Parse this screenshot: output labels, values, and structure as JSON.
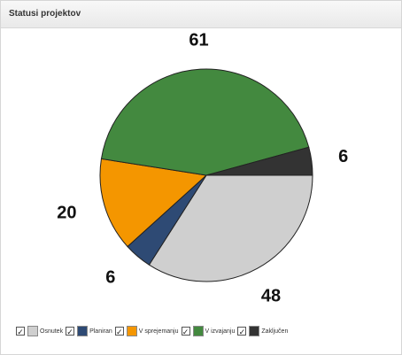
{
  "panel": {
    "title": "Statusi projektov"
  },
  "chart_data": {
    "type": "pie",
    "title": "",
    "slices": [
      {
        "label": "Osnutek",
        "value": 48,
        "color": "#cfcfcf"
      },
      {
        "label": "Planiran",
        "value": 6,
        "color": "#2e4a74"
      },
      {
        "label": "V sprejemanju",
        "value": 20,
        "color": "#f49600"
      },
      {
        "label": "V izvajanju",
        "value": 61,
        "color": "#43893f"
      },
      {
        "label": "Zaključen",
        "value": 6,
        "color": "#333333"
      }
    ],
    "legend_position": "bottom",
    "show_value_labels": true
  },
  "legend": {
    "check_glyph": "✓",
    "items": [
      {
        "label": "Osnutek",
        "checked": true,
        "color": "#cfcfcf"
      },
      {
        "label": "Planiran",
        "checked": true,
        "color": "#2e4a74"
      },
      {
        "label": "V sprejemanju",
        "checked": true,
        "color": "#f49600"
      },
      {
        "label": "V izvajanju",
        "checked": true,
        "color": "#43893f"
      },
      {
        "label": "Zaključen",
        "checked": true,
        "color": "#333333"
      }
    ]
  }
}
